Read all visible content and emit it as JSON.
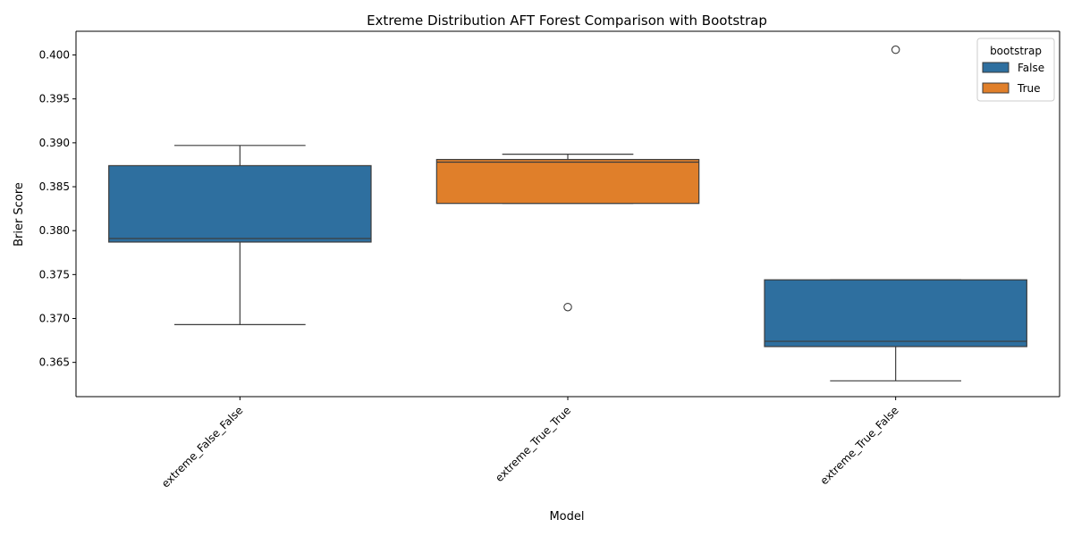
{
  "chart_data": {
    "type": "box",
    "title": "Extreme Distribution AFT Forest Comparison with Bootstrap",
    "xlabel": "Model",
    "ylabel": "Brier Score",
    "ylim": [
      0.3611,
      0.4027
    ],
    "yticks": [
      "0.365",
      "0.370",
      "0.375",
      "0.380",
      "0.385",
      "0.390",
      "0.395",
      "0.400"
    ],
    "grid": false,
    "legend": {
      "title": "bootstrap",
      "position": "top-right",
      "entries": [
        {
          "label": "False",
          "color": "#2e6f9f"
        },
        {
          "label": "True",
          "color": "#e07f2a"
        }
      ]
    },
    "categories": [
      "extreme_False_False",
      "extreme_True_True",
      "extreme_True_False"
    ],
    "boxes": [
      {
        "category": "extreme_False_False",
        "hue": "False",
        "whisker_low": 0.3693,
        "q1": 0.3787,
        "median": 0.3791,
        "q3": 0.3874,
        "whisker_high": 0.3897,
        "outliers": []
      },
      {
        "category": "extreme_True_True",
        "hue": "True",
        "whisker_low": 0.3831,
        "q1": 0.3831,
        "median": 0.3878,
        "q3": 0.3881,
        "whisker_high": 0.3887,
        "outliers": [
          0.3713
        ]
      },
      {
        "category": "extreme_True_False",
        "hue": "False",
        "whisker_low": 0.3629,
        "q1": 0.3668,
        "median": 0.3674,
        "q3": 0.3744,
        "whisker_high": 0.3744,
        "outliers": [
          0.4006
        ]
      }
    ]
  }
}
